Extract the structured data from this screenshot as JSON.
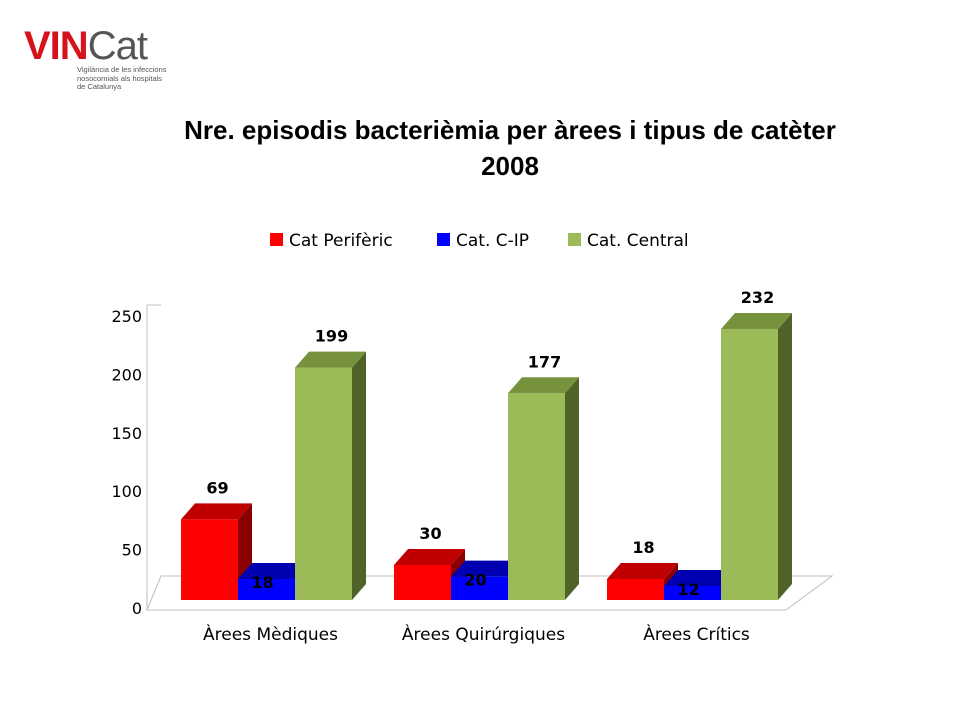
{
  "logo": {
    "brand_a": "VIN",
    "brand_b": "Cat",
    "tagline": [
      "Vigilància de les infeccions",
      "nosocomials als hospitals",
      "de Catalunya"
    ]
  },
  "chart_data": {
    "type": "bar",
    "title": "Nre. episodis bacterièmia per àrees i tipus de catèter",
    "subtitle": "2008",
    "categories": [
      "Àrees Mèdiques",
      "Àrees Quirúrgiques",
      "Àrees Crítics"
    ],
    "series": [
      {
        "name": "Cat Perifèric",
        "values": [
          69,
          30,
          18
        ],
        "color": "#ff0000",
        "side_color": "#8b0000",
        "top_color": "#c00000"
      },
      {
        "name": "Cat. C-IP",
        "values": [
          18,
          20,
          12
        ],
        "color": "#0000ff",
        "side_color": "#000080",
        "top_color": "#0000b0"
      },
      {
        "name": "Cat. Central",
        "values": [
          199,
          177,
          232
        ],
        "color": "#9bbb59",
        "side_color": "#4f6228",
        "top_color": "#76923c"
      }
    ],
    "ylim": [
      0,
      250
    ],
    "yticks": [
      0,
      50,
      100,
      150,
      200,
      250
    ],
    "legend_position": "top",
    "grid": false,
    "style": "3d-clustered"
  }
}
